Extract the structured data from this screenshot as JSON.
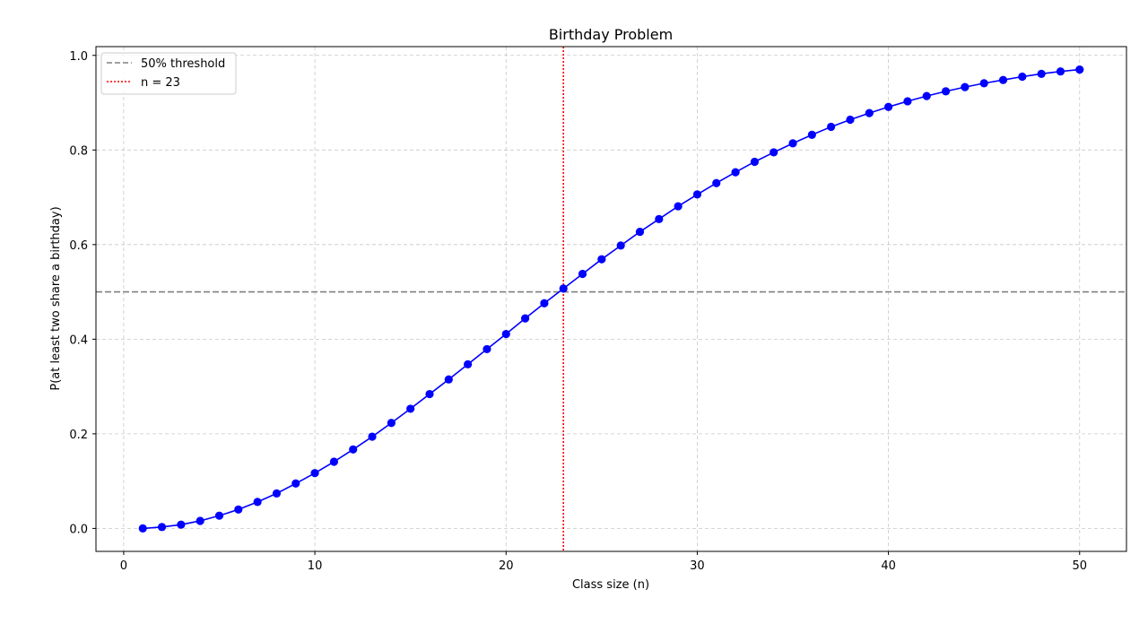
{
  "chart_data": {
    "type": "line",
    "title": "Birthday Problem",
    "xlabel": "Class size (n)",
    "ylabel": "P(at least two share a birthday)",
    "xlim": [
      -1.45,
      52.45
    ],
    "ylim": [
      -0.0485,
      1.0185
    ],
    "xticks": [
      0,
      10,
      20,
      30,
      40,
      50
    ],
    "yticks": [
      0.0,
      0.2,
      0.4,
      0.6,
      0.8,
      1.0
    ],
    "grid": true,
    "legend_position": "upper-left",
    "series": [
      {
        "color": "#0000ff",
        "marker": "circle",
        "x": [
          1,
          2,
          3,
          4,
          5,
          6,
          7,
          8,
          9,
          10,
          11,
          12,
          13,
          14,
          15,
          16,
          17,
          18,
          19,
          20,
          21,
          22,
          23,
          24,
          25,
          26,
          27,
          28,
          29,
          30,
          31,
          32,
          33,
          34,
          35,
          36,
          37,
          38,
          39,
          40,
          41,
          42,
          43,
          44,
          45,
          46,
          47,
          48,
          49,
          50
        ],
        "values": [
          0.0,
          0.003,
          0.008,
          0.016,
          0.027,
          0.04,
          0.056,
          0.074,
          0.095,
          0.117,
          0.141,
          0.167,
          0.194,
          0.223,
          0.253,
          0.284,
          0.315,
          0.347,
          0.379,
          0.411,
          0.444,
          0.476,
          0.507,
          0.538,
          0.569,
          0.598,
          0.627,
          0.654,
          0.681,
          0.706,
          0.73,
          0.753,
          0.775,
          0.795,
          0.814,
          0.832,
          0.849,
          0.864,
          0.878,
          0.891,
          0.903,
          0.914,
          0.924,
          0.933,
          0.941,
          0.948,
          0.955,
          0.961,
          0.966,
          0.97
        ]
      }
    ],
    "reference_lines": [
      {
        "orientation": "horizontal",
        "value": 0.5,
        "label": "50% threshold",
        "color": "#808080",
        "style": "dashed"
      },
      {
        "orientation": "vertical",
        "value": 23,
        "label": "n = 23",
        "color": "#ff0000",
        "style": "dotted"
      }
    ]
  }
}
